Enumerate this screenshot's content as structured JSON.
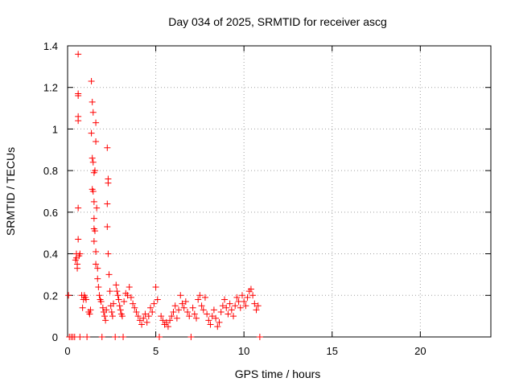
{
  "chart_data": {
    "type": "scatter",
    "title": "Day 034 of 2025, SRMTID for receiver ascg",
    "xlabel": "GPS time / hours",
    "ylabel": "SRMTID / TECUs",
    "xlim": [
      0,
      24
    ],
    "ylim": [
      0,
      1.4
    ],
    "xticks": [
      0,
      5,
      10,
      15,
      20
    ],
    "xtick_labels": [
      "0",
      "5",
      "10",
      "15",
      "20"
    ],
    "yticks": [
      0,
      0.2,
      0.4,
      0.6,
      0.8,
      1.0,
      1.2,
      1.4
    ],
    "ytick_labels": [
      "0",
      "0.2",
      "0.4",
      "0.6",
      "0.8",
      "1",
      "1.2",
      "1.4"
    ],
    "grid": true,
    "marker": "+",
    "series": [
      {
        "name": "SRMTID",
        "color": "#ff0000",
        "points": [
          [
            0.05,
            0.2
          ],
          [
            0.1,
            0.0
          ],
          [
            0.2,
            0.0
          ],
          [
            0.3,
            0.0
          ],
          [
            0.4,
            0.0
          ],
          [
            0.45,
            0.37
          ],
          [
            0.5,
            0.38
          ],
          [
            0.5,
            0.4
          ],
          [
            0.55,
            0.33
          ],
          [
            0.55,
            0.35
          ],
          [
            0.6,
            1.36
          ],
          [
            0.6,
            1.17
          ],
          [
            0.6,
            1.16
          ],
          [
            0.6,
            1.06
          ],
          [
            0.6,
            1.04
          ],
          [
            0.6,
            0.62
          ],
          [
            0.6,
            0.47
          ],
          [
            0.65,
            0.39
          ],
          [
            0.7,
            0.4
          ],
          [
            0.7,
            0.0
          ],
          [
            0.8,
            0.2
          ],
          [
            0.85,
            0.14
          ],
          [
            0.9,
            0.18
          ],
          [
            0.95,
            0.2
          ],
          [
            1.0,
            0.19
          ],
          [
            1.05,
            0.18
          ],
          [
            1.1,
            0.0
          ],
          [
            1.2,
            0.12
          ],
          [
            1.25,
            0.11
          ],
          [
            1.3,
            0.13
          ],
          [
            1.35,
            1.23
          ],
          [
            1.35,
            0.98
          ],
          [
            1.4,
            1.13
          ],
          [
            1.4,
            0.86
          ],
          [
            1.4,
            0.71
          ],
          [
            1.45,
            1.08
          ],
          [
            1.45,
            0.84
          ],
          [
            1.45,
            0.7
          ],
          [
            1.5,
            0.79
          ],
          [
            1.5,
            0.65
          ],
          [
            1.5,
            0.57
          ],
          [
            1.5,
            0.52
          ],
          [
            1.5,
            0.46
          ],
          [
            1.55,
            0.8
          ],
          [
            1.55,
            0.51
          ],
          [
            1.6,
            1.03
          ],
          [
            1.6,
            0.94
          ],
          [
            1.6,
            0.41
          ],
          [
            1.6,
            0.35
          ],
          [
            1.65,
            0.62
          ],
          [
            1.7,
            0.33
          ],
          [
            1.7,
            0.28
          ],
          [
            1.75,
            0.24
          ],
          [
            1.8,
            0.2
          ],
          [
            1.85,
            0.18
          ],
          [
            1.9,
            0.17
          ],
          [
            1.95,
            0.0
          ],
          [
            2.0,
            0.14
          ],
          [
            2.05,
            0.12
          ],
          [
            2.1,
            0.1
          ],
          [
            2.15,
            0.08
          ],
          [
            2.2,
            0.13
          ],
          [
            2.25,
            0.91
          ],
          [
            2.25,
            0.64
          ],
          [
            2.25,
            0.53
          ],
          [
            2.3,
            0.76
          ],
          [
            2.3,
            0.74
          ],
          [
            2.3,
            0.4
          ],
          [
            2.35,
            0.3
          ],
          [
            2.4,
            0.22
          ],
          [
            2.45,
            0.15
          ],
          [
            2.5,
            0.12
          ],
          [
            2.55,
            0.1
          ],
          [
            2.6,
            0.16
          ],
          [
            2.7,
            0.0
          ],
          [
            2.75,
            0.25
          ],
          [
            2.8,
            0.22
          ],
          [
            2.85,
            0.2
          ],
          [
            2.9,
            0.18
          ],
          [
            2.95,
            0.15
          ],
          [
            3.0,
            0.13
          ],
          [
            3.05,
            0.11
          ],
          [
            3.1,
            0.1
          ],
          [
            3.15,
            0.0
          ],
          [
            3.2,
            0.17
          ],
          [
            3.3,
            0.21
          ],
          [
            3.4,
            0.2
          ],
          [
            3.5,
            0.24
          ],
          [
            3.6,
            0.19
          ],
          [
            3.7,
            0.16
          ],
          [
            3.8,
            0.14
          ],
          [
            3.9,
            0.12
          ],
          [
            4.0,
            0.1
          ],
          [
            4.1,
            0.08
          ],
          [
            4.2,
            0.06
          ],
          [
            4.3,
            0.09
          ],
          [
            4.4,
            0.11
          ],
          [
            4.5,
            0.07
          ],
          [
            4.6,
            0.1
          ],
          [
            4.7,
            0.14
          ],
          [
            4.8,
            0.12
          ],
          [
            4.9,
            0.16
          ],
          [
            5.0,
            0.24
          ],
          [
            5.1,
            0.18
          ],
          [
            5.2,
            0.0
          ],
          [
            5.3,
            0.1
          ],
          [
            5.4,
            0.08
          ],
          [
            5.5,
            0.06
          ],
          [
            5.6,
            0.07
          ],
          [
            5.7,
            0.05
          ],
          [
            5.8,
            0.08
          ],
          [
            5.9,
            0.1
          ],
          [
            6.0,
            0.12
          ],
          [
            6.1,
            0.15
          ],
          [
            6.2,
            0.09
          ],
          [
            6.3,
            0.13
          ],
          [
            6.4,
            0.2
          ],
          [
            6.5,
            0.16
          ],
          [
            6.6,
            0.14
          ],
          [
            6.7,
            0.17
          ],
          [
            6.8,
            0.12
          ],
          [
            6.9,
            0.1
          ],
          [
            7.0,
            0.0
          ],
          [
            7.1,
            0.14
          ],
          [
            7.2,
            0.11
          ],
          [
            7.3,
            0.09
          ],
          [
            7.4,
            0.18
          ],
          [
            7.5,
            0.2
          ],
          [
            7.6,
            0.15
          ],
          [
            7.7,
            0.13
          ],
          [
            7.8,
            0.19
          ],
          [
            7.9,
            0.11
          ],
          [
            8.0,
            0.08
          ],
          [
            8.1,
            0.06
          ],
          [
            8.2,
            0.1
          ],
          [
            8.3,
            0.13
          ],
          [
            8.4,
            0.09
          ],
          [
            8.5,
            0.05
          ],
          [
            8.6,
            0.07
          ],
          [
            8.7,
            0.12
          ],
          [
            8.8,
            0.15
          ],
          [
            8.9,
            0.18
          ],
          [
            9.0,
            0.14
          ],
          [
            9.1,
            0.11
          ],
          [
            9.2,
            0.16
          ],
          [
            9.3,
            0.13
          ],
          [
            9.4,
            0.1
          ],
          [
            9.5,
            0.15
          ],
          [
            9.6,
            0.19
          ],
          [
            9.7,
            0.17
          ],
          [
            9.8,
            0.14
          ],
          [
            9.9,
            0.2
          ],
          [
            10.0,
            0.17
          ],
          [
            10.1,
            0.15
          ],
          [
            10.2,
            0.19
          ],
          [
            10.3,
            0.22
          ],
          [
            10.4,
            0.23
          ],
          [
            10.5,
            0.2
          ],
          [
            10.6,
            0.16
          ],
          [
            10.7,
            0.13
          ],
          [
            10.8,
            0.15
          ],
          [
            10.9,
            0.0
          ]
        ]
      }
    ]
  }
}
